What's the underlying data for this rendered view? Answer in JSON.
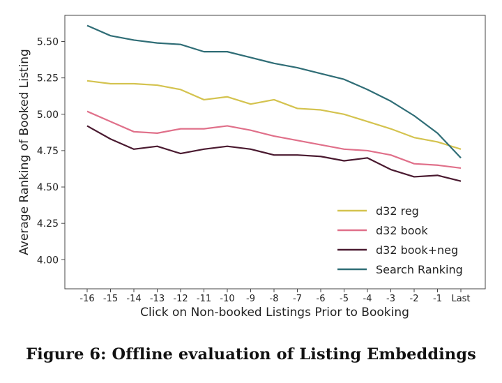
{
  "chart_data": {
    "type": "line",
    "title": "",
    "xlabel": "Click on Non-booked Listings Prior to Booking",
    "ylabel": "Average Ranking of Booked Listing",
    "categories": [
      "-16",
      "-15",
      "-14",
      "-13",
      "-12",
      "-11",
      "-10",
      "-9",
      "-8",
      "-7",
      "-6",
      "-5",
      "-4",
      "-3",
      "-2",
      "-1",
      "Last"
    ],
    "ylim": [
      3.8,
      5.68
    ],
    "yticks": [
      "4.00",
      "4.25",
      "4.50",
      "4.75",
      "5.00",
      "5.25",
      "5.50"
    ],
    "ytick_values": [
      4.0,
      4.25,
      4.5,
      4.75,
      5.0,
      5.25,
      5.5
    ],
    "grid": false,
    "legend_position": "bottom-right",
    "series": [
      {
        "name": "d32 reg",
        "color": "#d4c34f",
        "values": [
          5.23,
          5.21,
          5.21,
          5.2,
          5.17,
          5.1,
          5.12,
          5.07,
          5.1,
          5.04,
          5.03,
          5.0,
          4.95,
          4.9,
          4.84,
          4.81,
          4.76
        ]
      },
      {
        "name": "d32 book",
        "color": "#e0708a",
        "values": [
          5.02,
          4.95,
          4.88,
          4.87,
          4.9,
          4.9,
          4.92,
          4.89,
          4.85,
          4.82,
          4.79,
          4.76,
          4.75,
          4.72,
          4.66,
          4.65,
          4.63
        ]
      },
      {
        "name": "d32 book+neg",
        "color": "#4a1a30",
        "values": [
          4.92,
          4.83,
          4.76,
          4.78,
          4.73,
          4.76,
          4.78,
          4.76,
          4.72,
          4.72,
          4.71,
          4.68,
          4.7,
          4.62,
          4.57,
          4.58,
          4.54
        ]
      },
      {
        "name": "Search Ranking",
        "color": "#2f6d76",
        "values": [
          5.61,
          5.54,
          5.51,
          5.49,
          5.48,
          5.43,
          5.43,
          5.39,
          5.35,
          5.32,
          5.28,
          5.24,
          5.17,
          5.09,
          4.99,
          4.87,
          4.7
        ]
      }
    ]
  },
  "caption": "Figure 6: Offline evaluation of Listing Embeddings"
}
